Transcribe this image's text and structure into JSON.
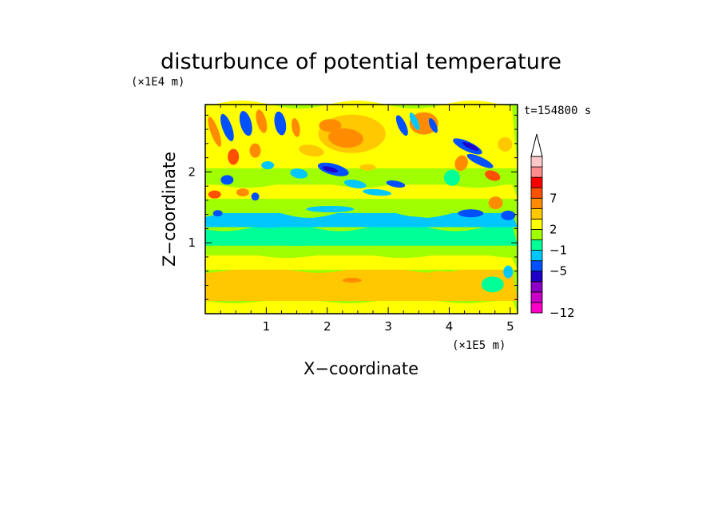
{
  "chart_data": {
    "type": "heatmap",
    "title": "disturbunce of potential temperature",
    "xlabel": "X−coordinate",
    "ylabel": "Z−coordinate",
    "x_unit_label": "(×1E5 m)",
    "y_unit_label": "(×1E4 m)",
    "time_label": "t=154800 s",
    "xlim": [
      0,
      5.12
    ],
    "ylim": [
      0,
      2.95
    ],
    "x_ticks": [
      {
        "value": 1,
        "label": "1"
      },
      {
        "value": 2,
        "label": "2"
      },
      {
        "value": 3,
        "label": "3"
      },
      {
        "value": 4,
        "label": "4"
      },
      {
        "value": 5,
        "label": "5"
      }
    ],
    "y_ticks": [
      {
        "value": 1,
        "label": "1"
      },
      {
        "value": 2,
        "label": "2"
      }
    ],
    "colorbar": {
      "colors": [
        "#ff00c8",
        "#c800c8",
        "#8c00c8",
        "#1e00c8",
        "#0050ff",
        "#00c8ff",
        "#00ff96",
        "#a0ff00",
        "#ffff00",
        "#ffc800",
        "#ff8c00",
        "#ff5000",
        "#ff0000",
        "#ff8c8c",
        "#ffc8c8"
      ],
      "labels": [
        {
          "text": "−12",
          "index": 0
        },
        {
          "text": "−5",
          "index": 4
        },
        {
          "text": "−1",
          "index": 6
        },
        {
          "text": "2",
          "index": 8
        },
        {
          "text": "7",
          "index": 11
        }
      ],
      "extend_max": true
    }
  }
}
